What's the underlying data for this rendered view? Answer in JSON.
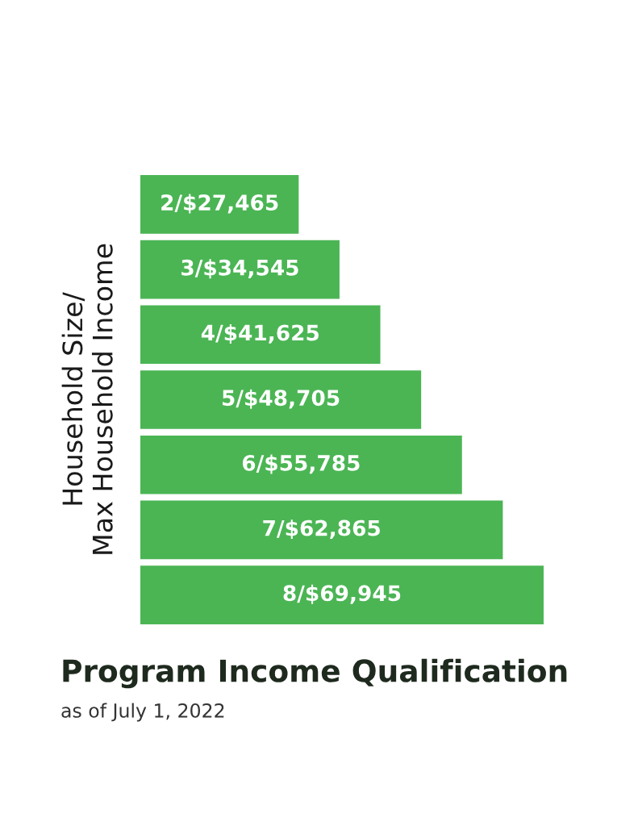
{
  "chart_data": {
    "type": "bar",
    "orientation": "horizontal",
    "title": "Program Income Qualification",
    "subtitle": "as of July 1, 2022",
    "ylabel": "Household Size/\nMax Household Income",
    "categories": [
      null,
      null,
      null,
      null,
      null,
      null,
      null
    ],
    "values": [
      27465,
      34545,
      41625,
      48705,
      55785,
      62865,
      69945
    ],
    "value_labels": [
      "2/$27,465",
      "3/$34,545",
      "4/$41,625",
      "5/$48,705",
      "6/$55,785",
      "7/$62,865",
      "8/$69,945"
    ],
    "color": "#4bb554",
    "grid": false,
    "legend": false,
    "tick_labels": false
  }
}
